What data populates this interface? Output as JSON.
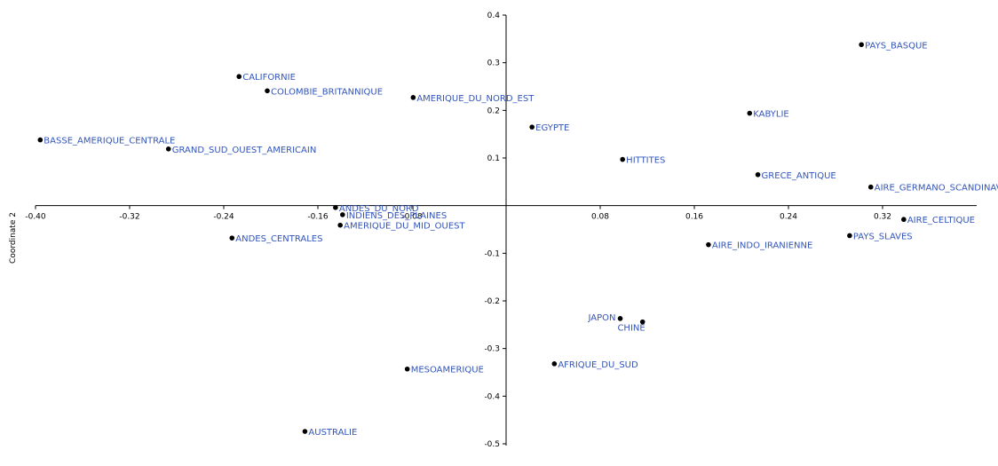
{
  "chart_data": {
    "type": "scatter",
    "title": "",
    "xlabel": "",
    "ylabel": "Coordinate 2",
    "xlim": [
      -0.4,
      0.4
    ],
    "ylim": [
      -0.5,
      0.4
    ],
    "grid": false,
    "colors": {
      "point": "#000000",
      "label": "#3355bb",
      "axis": "#000000"
    },
    "x_ticks": [
      {
        "value": -0.4,
        "label": "-0.40"
      },
      {
        "value": -0.32,
        "label": "-0.32"
      },
      {
        "value": -0.24,
        "label": "-0.24"
      },
      {
        "value": -0.16,
        "label": "-0.16"
      },
      {
        "value": -0.08,
        "label": "-0.08"
      },
      {
        "value": 0.08,
        "label": "0.08"
      },
      {
        "value": 0.16,
        "label": "0.16"
      },
      {
        "value": 0.24,
        "label": "0.24"
      },
      {
        "value": 0.32,
        "label": "0.32"
      }
    ],
    "y_ticks": [
      {
        "value": 0.4,
        "label": "0.4"
      },
      {
        "value": 0.3,
        "label": "0.3"
      },
      {
        "value": 0.2,
        "label": "0.2"
      },
      {
        "value": 0.1,
        "label": "0.1"
      },
      {
        "value": -0.1,
        "label": "-0.1"
      },
      {
        "value": -0.2,
        "label": "-0.2"
      },
      {
        "value": -0.3,
        "label": "-0.3"
      },
      {
        "value": -0.4,
        "label": "-0.4"
      },
      {
        "value": -0.5,
        "label": "-0.5"
      }
    ],
    "points": [
      {
        "label": "PAYS_BASQUE",
        "x": 0.302,
        "y": 0.338,
        "pos": "right"
      },
      {
        "label": "CALIFORNIE",
        "x": -0.227,
        "y": 0.271,
        "pos": "right"
      },
      {
        "label": "COLOMBIE_BRITANNIQUE",
        "x": -0.203,
        "y": 0.241,
        "pos": "right"
      },
      {
        "label": "AMERIQUE_DU_NORD_EST",
        "x": -0.079,
        "y": 0.227,
        "pos": "right"
      },
      {
        "label": "KABYLIE",
        "x": 0.207,
        "y": 0.194,
        "pos": "right"
      },
      {
        "label": "EGYPTE",
        "x": 0.022,
        "y": 0.165,
        "pos": "right"
      },
      {
        "label": "BASSE_AMERIQUE_CENTRALE",
        "x": -0.396,
        "y": 0.138,
        "pos": "right"
      },
      {
        "label": "GRAND_SUD_OUEST_AMERICAIN",
        "x": -0.287,
        "y": 0.119,
        "pos": "right"
      },
      {
        "label": "HITTITES",
        "x": 0.099,
        "y": 0.097,
        "pos": "right"
      },
      {
        "label": "GRECE_ANTIQUE",
        "x": 0.214,
        "y": 0.065,
        "pos": "right"
      },
      {
        "label": "AIRE_GERMANO_SCANDINAVE",
        "x": 0.31,
        "y": 0.039,
        "pos": "right"
      },
      {
        "label": "ANDES_DU_NORD",
        "x": -0.145,
        "y": -0.004,
        "pos": "right"
      },
      {
        "label": "INDIENS_DES_PLAINES",
        "x": -0.139,
        "y": -0.019,
        "pos": "right"
      },
      {
        "label": "AIRE_CELTIQUE",
        "x": 0.338,
        "y": -0.029,
        "pos": "right"
      },
      {
        "label": "AMERIQUE_DU_MID_OUEST",
        "x": -0.141,
        "y": -0.041,
        "pos": "right"
      },
      {
        "label": "ANDES_CENTRALES",
        "x": -0.233,
        "y": -0.068,
        "pos": "right"
      },
      {
        "label": "PAYS_SLAVES",
        "x": 0.292,
        "y": -0.063,
        "pos": "right"
      },
      {
        "label": "AIRE_INDO_IRANIENNE",
        "x": 0.172,
        "y": -0.082,
        "pos": "right"
      },
      {
        "label": "JAPON",
        "x": 0.097,
        "y": -0.237,
        "pos": "left"
      },
      {
        "label": "CHINE",
        "x": 0.116,
        "y": -0.244,
        "pos": "below-left"
      },
      {
        "label": "AFRIQUE_DU_SUD",
        "x": 0.041,
        "y": -0.332,
        "pos": "right"
      },
      {
        "label": "MESOAMERIQUE",
        "x": -0.084,
        "y": -0.343,
        "pos": "right"
      },
      {
        "label": "AUSTRALIE",
        "x": -0.171,
        "y": -0.474,
        "pos": "right"
      }
    ]
  }
}
